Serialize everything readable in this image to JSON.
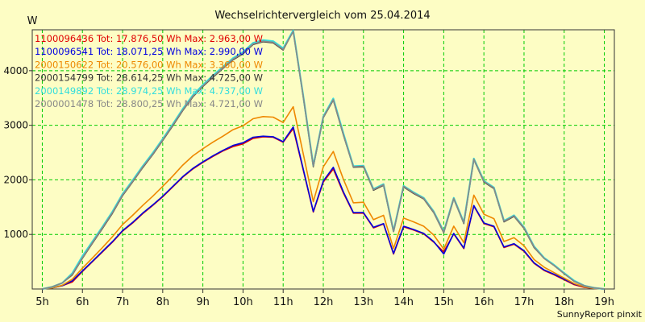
{
  "chart_data": {
    "type": "line",
    "title": "Wechselrichtervergleich vom 25.04.2014",
    "ylabel": "W",
    "xlabel": "",
    "footer": "SunnyReport pinxit",
    "ylim": [
      0,
      4750
    ],
    "xlim": [
      4.75,
      19.25
    ],
    "grid": true,
    "legend_position": "top-left",
    "xticks": [
      {
        "v": 5,
        "label": "5h"
      },
      {
        "v": 6,
        "label": "6h"
      },
      {
        "v": 7,
        "label": "7h"
      },
      {
        "v": 8,
        "label": "8h"
      },
      {
        "v": 9,
        "label": "9h"
      },
      {
        "v": 10,
        "label": "10h"
      },
      {
        "v": 11,
        "label": "11h"
      },
      {
        "v": 12,
        "label": "12h"
      },
      {
        "v": 13,
        "label": "13h"
      },
      {
        "v": 14,
        "label": "14h"
      },
      {
        "v": 15,
        "label": "15h"
      },
      {
        "v": 16,
        "label": "16h"
      },
      {
        "v": 17,
        "label": "17h"
      },
      {
        "v": 18,
        "label": "18h"
      },
      {
        "v": 19,
        "label": "19h"
      }
    ],
    "yticks": [
      {
        "v": 1000,
        "label": "1000"
      },
      {
        "v": 2000,
        "label": "2000"
      },
      {
        "v": 3000,
        "label": "3000"
      },
      {
        "v": 4000,
        "label": "4000"
      }
    ],
    "x": [
      5,
      5.25,
      5.5,
      5.75,
      6,
      6.25,
      6.5,
      6.75,
      7,
      7.25,
      7.5,
      7.75,
      8,
      8.25,
      8.5,
      8.75,
      9,
      9.25,
      9.5,
      9.75,
      10,
      10.25,
      10.5,
      10.75,
      11,
      11.25,
      11.5,
      11.75,
      12,
      12.25,
      12.5,
      12.75,
      13,
      13.25,
      13.5,
      13.75,
      14,
      14.25,
      14.5,
      14.75,
      15,
      15.25,
      15.5,
      15.75,
      16,
      16.25,
      16.5,
      16.75,
      17,
      17.25,
      17.5,
      17.75,
      18,
      18.25,
      18.5,
      18.75,
      19
    ],
    "series": [
      {
        "name": "1100096436",
        "legend": "1100096436 Tot: 17.876,50 Wh Max: 2.963,00 W",
        "color": "#e00000",
        "width": 1.6,
        "values": [
          0,
          20,
          60,
          130,
          320,
          500,
          680,
          860,
          1060,
          1210,
          1380,
          1530,
          1690,
          1870,
          2050,
          2200,
          2320,
          2430,
          2530,
          2610,
          2660,
          2760,
          2790,
          2780,
          2690,
          2940,
          2180,
          1410,
          1960,
          2200,
          1760,
          1390,
          1390,
          1120,
          1190,
          640,
          1140,
          1080,
          1010,
          860,
          680,
          1010,
          740,
          1520,
          1200,
          1140,
          760,
          820,
          690,
          470,
          340,
          260,
          170,
          80,
          30,
          10,
          0
        ]
      },
      {
        "name": "1100096541",
        "legend": "1100096541 Tot: 18.071,25 Wh Max: 2.990,00 W",
        "color": "#0000e0",
        "width": 1.6,
        "values": [
          0,
          20,
          60,
          150,
          330,
          510,
          690,
          870,
          1070,
          1220,
          1390,
          1540,
          1700,
          1880,
          2060,
          2210,
          2330,
          2440,
          2540,
          2630,
          2680,
          2780,
          2800,
          2790,
          2700,
          2970,
          2200,
          1420,
          1980,
          2230,
          1780,
          1400,
          1400,
          1130,
          1200,
          650,
          1150,
          1090,
          1020,
          870,
          640,
          1020,
          750,
          1530,
          1210,
          1150,
          770,
          830,
          700,
          480,
          350,
          270,
          180,
          90,
          40,
          10,
          0
        ]
      },
      {
        "name": "2000150622",
        "legend": "2000150622 Tot: 20.576,00 Wh Max: 3.360,00 W",
        "color": "#ee8800",
        "width": 1.6,
        "values": [
          0,
          20,
          70,
          180,
          380,
          570,
          760,
          960,
          1180,
          1350,
          1530,
          1700,
          1880,
          2070,
          2270,
          2440,
          2570,
          2690,
          2800,
          2920,
          2990,
          3120,
          3160,
          3150,
          3050,
          3340,
          2480,
          1600,
          2240,
          2520,
          2010,
          1580,
          1590,
          1270,
          1350,
          740,
          1300,
          1230,
          1150,
          990,
          730,
          1150,
          850,
          1720,
          1370,
          1290,
          870,
          940,
          790,
          540,
          400,
          300,
          200,
          100,
          40,
          10,
          0
        ]
      },
      {
        "name": "2000154799",
        "legend": "2000154799 Tot: 28.614,25 Wh Max: 4.725,00 W",
        "color": "#333333",
        "width": 1.5,
        "values": [
          0,
          40,
          110,
          260,
          560,
          840,
          1110,
          1390,
          1710,
          1960,
          2220,
          2460,
          2720,
          2990,
          3270,
          3520,
          3710,
          3880,
          4040,
          4200,
          4310,
          4480,
          4530,
          4510,
          4380,
          4725,
          3520,
          2240,
          3140,
          3460,
          2820,
          2230,
          2240,
          1810,
          1900,
          1050,
          1870,
          1750,
          1650,
          1400,
          1030,
          1650,
          1200,
          2370,
          1960,
          1840,
          1230,
          1330,
          1110,
          760,
          560,
          430,
          280,
          140,
          60,
          20,
          0
        ]
      },
      {
        "name": "2000149892",
        "legend": "2000149892 Tot: 28.974,25 Wh Max: 4.737,00 W",
        "color": "#33dddd",
        "width": 2.2,
        "values": [
          0,
          40,
          110,
          290,
          600,
          870,
          1140,
          1420,
          1740,
          1990,
          2250,
          2490,
          2750,
          3020,
          3300,
          3550,
          3740,
          3910,
          4070,
          4230,
          4340,
          4510,
          4560,
          4540,
          4410,
          4737,
          3540,
          2260,
          3160,
          3490,
          2850,
          2250,
          2260,
          1830,
          1920,
          1060,
          1890,
          1770,
          1670,
          1420,
          1050,
          1670,
          1220,
          2390,
          1980,
          1860,
          1250,
          1350,
          1130,
          780,
          570,
          440,
          290,
          150,
          60,
          20,
          0
        ]
      },
      {
        "name": "2000001478",
        "legend": "2000001478 Tot: 28.800,25 Wh Max: 4.721,00 W",
        "color": "#888888",
        "width": 1.6,
        "values": [
          0,
          40,
          110,
          270,
          570,
          850,
          1120,
          1400,
          1720,
          1970,
          2230,
          2470,
          2730,
          3000,
          3280,
          3530,
          3720,
          3890,
          4050,
          4210,
          4320,
          4490,
          4540,
          4520,
          4390,
          4721,
          3530,
          2250,
          3150,
          3470,
          2830,
          2240,
          2250,
          1820,
          1910,
          1050,
          1880,
          1760,
          1660,
          1410,
          1040,
          1660,
          1210,
          2380,
          1970,
          1850,
          1240,
          1340,
          1120,
          770,
          560,
          430,
          280,
          140,
          60,
          20,
          0
        ]
      }
    ]
  },
  "colors": {
    "background": "#fdfdc4",
    "grid": "#00cc00",
    "axis": "#333333",
    "text": "#111111"
  }
}
